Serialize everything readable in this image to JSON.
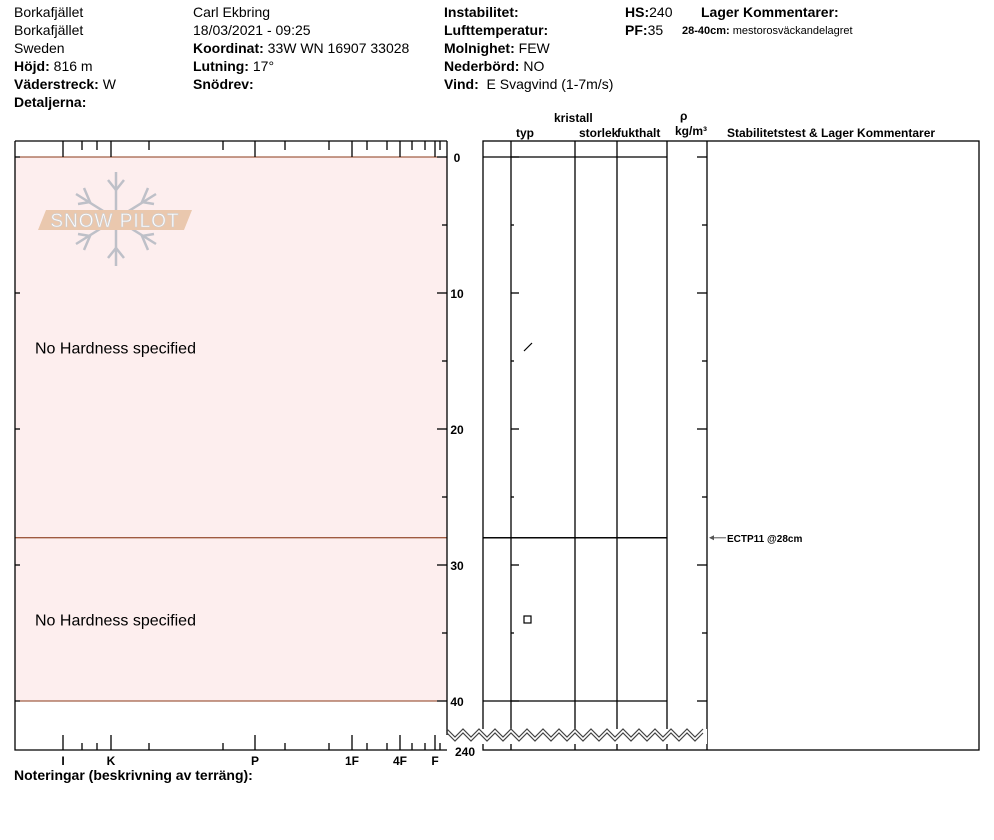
{
  "header": {
    "location1": "Borkafjället",
    "location2": "Borkafjället",
    "country": "Sweden",
    "elevation_label": "Höjd:",
    "elevation": "816 m",
    "aspect_label": "Väderstreck:",
    "aspect": "W",
    "details_label": "Detaljerna:",
    "observer": "Carl Ekbring",
    "datetime": "18/03/2021 - 09:25",
    "coord_label": "Koordinat:",
    "coord": "33W WN 16907 33028",
    "slope_label": "Lutning:",
    "slope": "17°",
    "drift_label": "Snödrev:",
    "instability_label": "Instabilitet:",
    "airtemp_label": "Lufttemperatur:",
    "sky_label": "Molnighet:",
    "sky": "FEW",
    "precip_label": "Nederbörd:",
    "precip": "NO",
    "wind_label": "Vind:",
    "wind": "E Svagvind (1-7m/s)",
    "hs_label": "HS:",
    "hs": "240",
    "pf_label": "PF:",
    "pf": "35",
    "layer_comments_label": "Lager Kommentarer:",
    "layer_comment_range": "28-40cm:",
    "layer_comment_text": "mestorosväckandelagret"
  },
  "logo": {
    "text": "SNOW PILOT"
  },
  "hardness_axis": {
    "labels": [
      "I",
      "K",
      "P",
      "1F",
      "4F",
      "F"
    ]
  },
  "depth_axis": {
    "labels": [
      "0",
      "10",
      "20",
      "30",
      "40",
      "240"
    ],
    "unit": "cm",
    "break_after": 40,
    "total": 240
  },
  "table_headers": {
    "crystal": "kristall",
    "type": "typ",
    "size": "storlek",
    "moisture": "fukthalt",
    "rho": "ρ",
    "density_unit": "kg/m³",
    "stability": "Stabilitetstest & Lager Kommentarer"
  },
  "layers": [
    {
      "top": 0,
      "bottom": 28,
      "hardness": "No Hardness specified",
      "grain_symbol": "decomposing-fragments"
    },
    {
      "top": 28,
      "bottom": 40,
      "hardness": "No Hardness specified",
      "grain_symbol": "faceted-square"
    }
  ],
  "stability_tests": [
    {
      "depth": 28,
      "label": "ECTP11 @28cm"
    }
  ],
  "notes_label": "Noteringar (beskrivning av terräng):",
  "colors": {
    "layer_fill": "#fdeeee",
    "layer_line": "#8b3a1a",
    "logo_band": "#e8c4a8",
    "logo_flake": "#b8bcc4"
  }
}
